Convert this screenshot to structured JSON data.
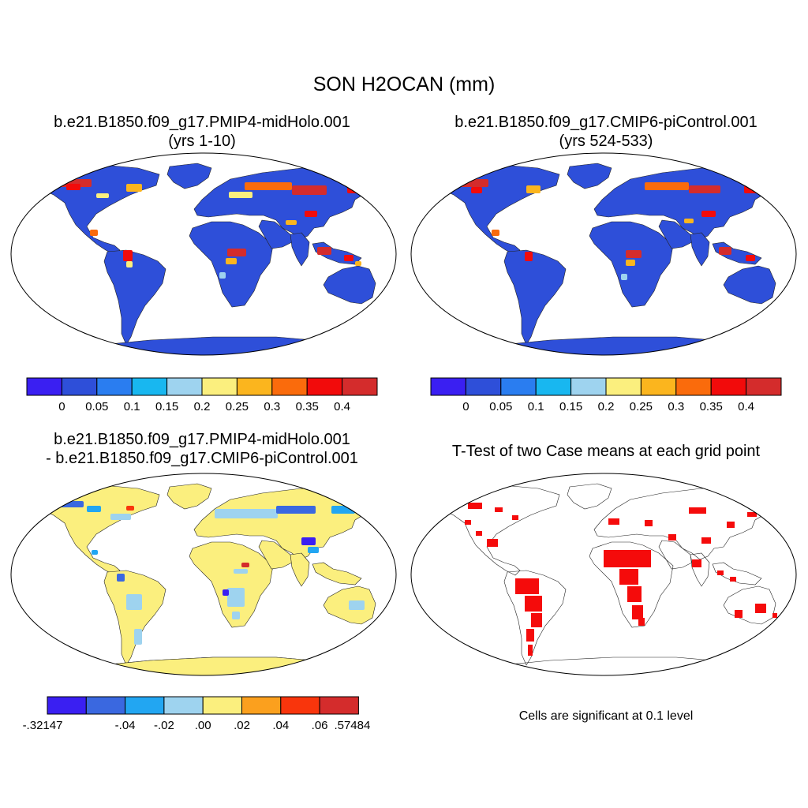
{
  "title": "SON H2OCAN (mm)",
  "panels": [
    {
      "id": "midholo",
      "title_line1": "b.e21.B1850.f09_g17.PMIP4-midHolo.001",
      "title_line2": "(yrs 1-10)"
    },
    {
      "id": "picontrol",
      "title_line1": "b.e21.B1850.f09_g17.CMIP6-piControl.001",
      "title_line2": "(yrs 524-533)"
    },
    {
      "id": "difference",
      "title_line1": "b.e21.B1850.f09_g17.PMIP4-midHolo.001",
      "title_line2": "- b.e21.B1850.f09_g17.CMIP6-piControl.001"
    },
    {
      "id": "ttest",
      "title_line1": "T-Test of two Case means at each grid point"
    }
  ],
  "colorbars": {
    "absolute": {
      "colors": [
        "#3a1ff2",
        "#2e4fd9",
        "#2a7df0",
        "#18b7f0",
        "#9ed3ef",
        "#fbef7e",
        "#fbb51e",
        "#fa6b0c",
        "#f20b0b",
        "#d42c2c"
      ],
      "labels": [
        "0",
        "0.05",
        "0.1",
        "0.15",
        "0.2",
        "0.25",
        "0.3",
        "0.35",
        "0.4"
      ]
    },
    "difference": {
      "colors": [
        "#3a1ff2",
        "#3a68e0",
        "#22a6f2",
        "#9ed3ef",
        "#fbef7e",
        "#fba01e",
        "#f9350c",
        "#d42c2c"
      ],
      "labels": [
        "-.32147",
        "-.04",
        "-.02",
        ".00",
        ".02",
        ".04",
        ".06",
        ".57484"
      ]
    }
  },
  "significance_color": "#f50b0b",
  "footnote": "Cells are significant at 0.1 level"
}
